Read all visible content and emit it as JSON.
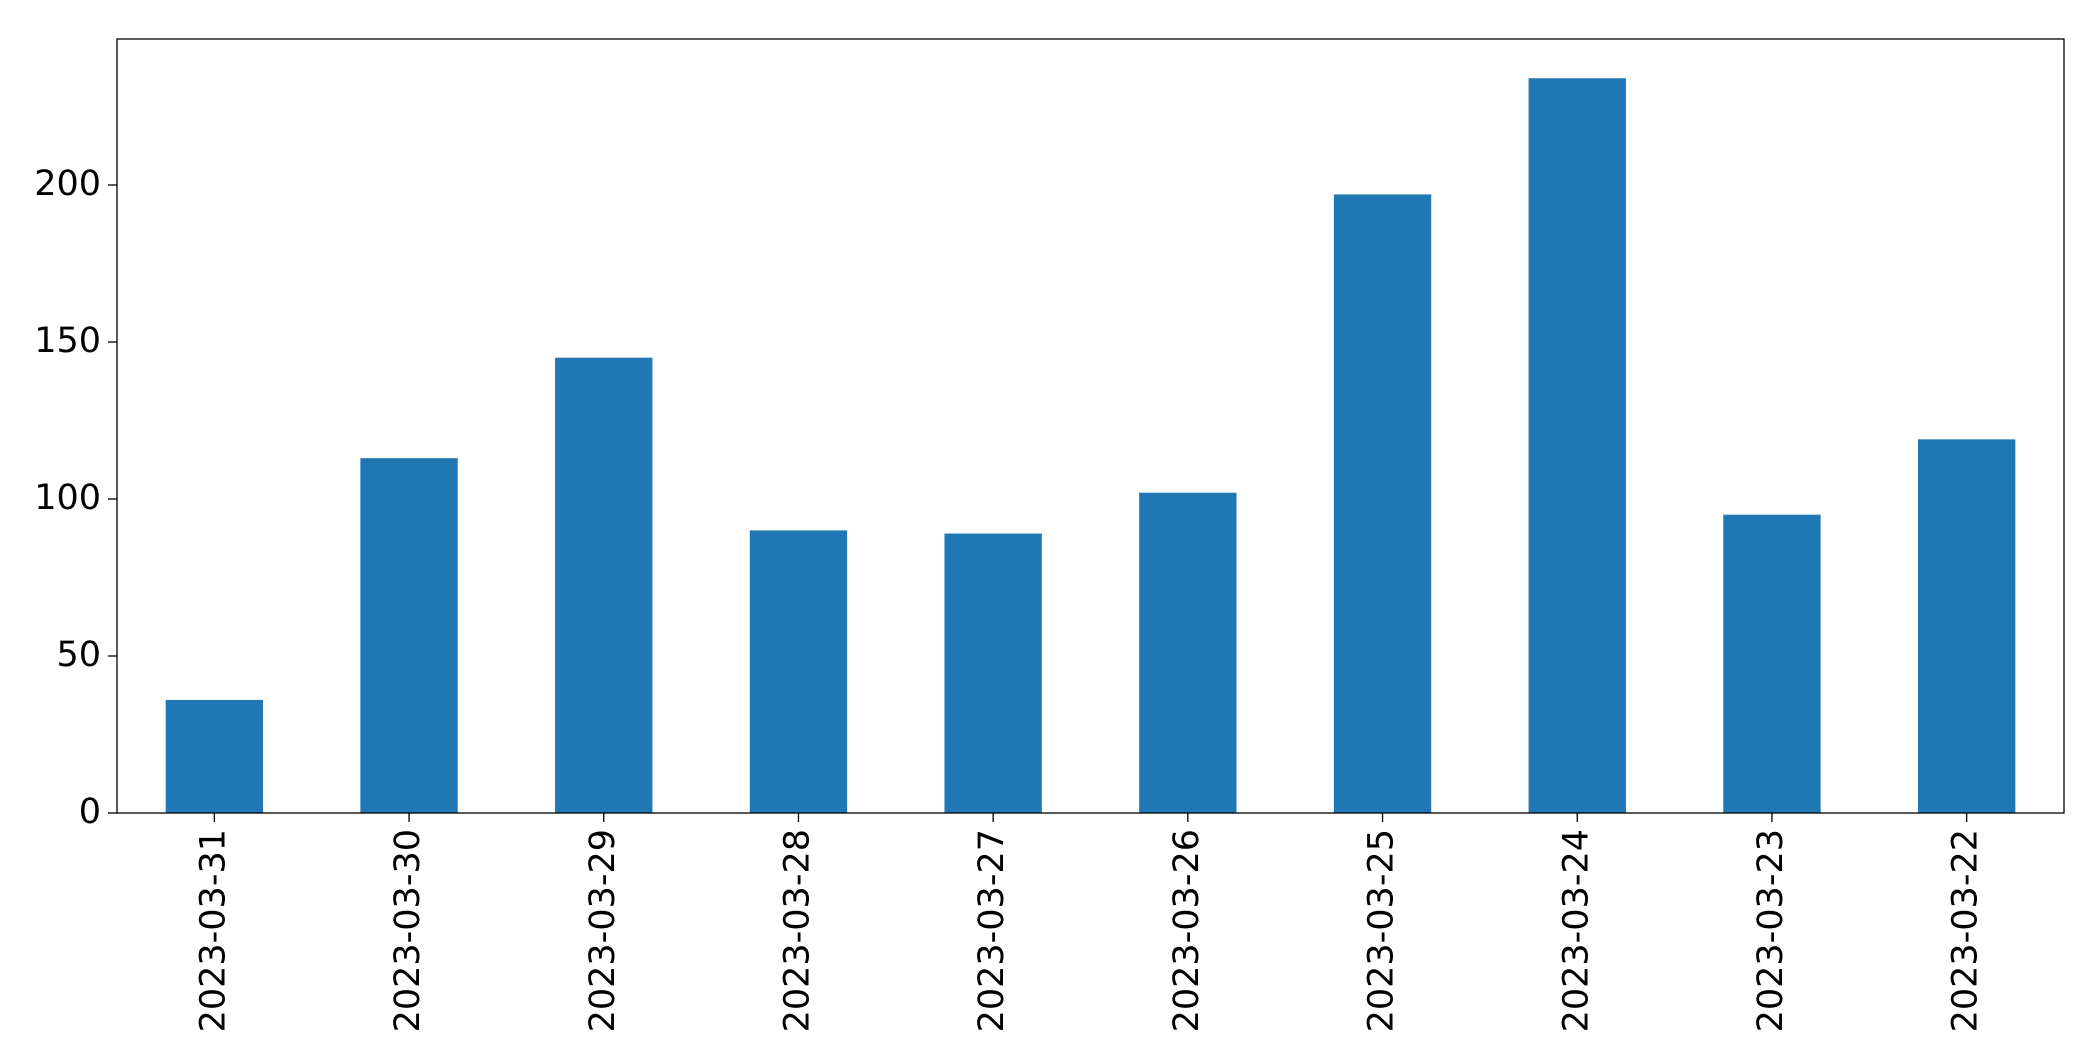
{
  "chart_data": {
    "type": "bar",
    "categories": [
      "2023-03-31",
      "2023-03-30",
      "2023-03-29",
      "2023-03-28",
      "2023-03-27",
      "2023-03-26",
      "2023-03-25",
      "2023-03-24",
      "2023-03-23",
      "2023-03-22"
    ],
    "values": [
      36,
      113,
      145,
      90,
      89,
      102,
      197,
      234,
      95,
      119
    ],
    "color": "#1f77b4",
    "ylim": [
      0,
      246.5
    ],
    "yticks": [
      0,
      50,
      100,
      150,
      200
    ],
    "grid": false
  }
}
